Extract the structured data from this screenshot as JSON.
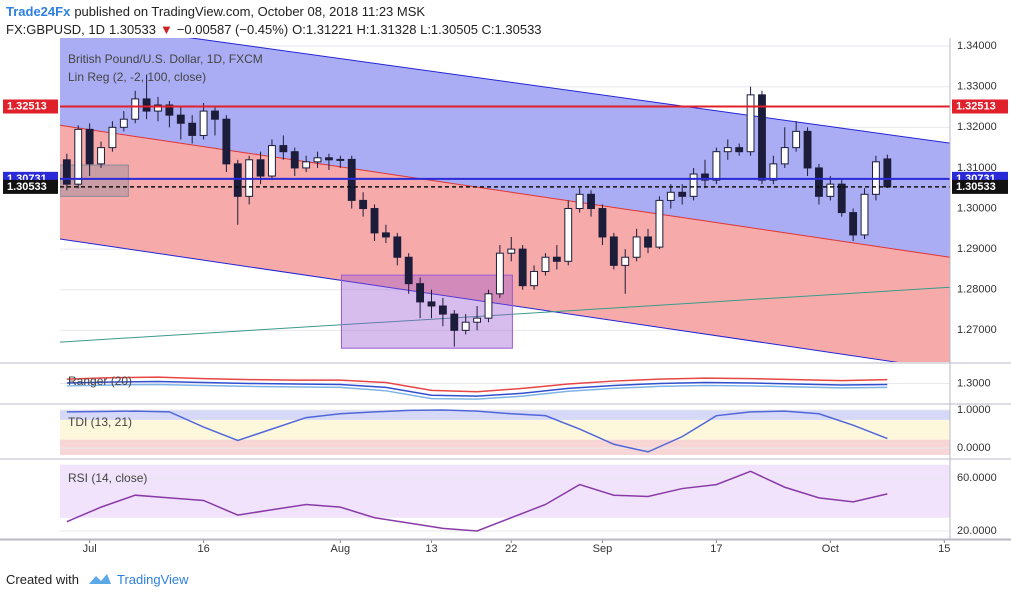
{
  "header": {
    "author": "Trade24Fx",
    "published": "published on TradingView.com, October 08, 2018 11:23 MSK",
    "symbol": "FX:GBPUSD, 1D",
    "last": "1.30533",
    "arrow": "▼",
    "change": "−0.00587 (−0.45%)",
    "ohlc": "O:1.31221 H:1.31328 L:1.30505 C:1.30533"
  },
  "footer": {
    "created": "Created with",
    "brand": "TradingView"
  },
  "chart_data": [
    {
      "type": "candlestick",
      "title": "British Pound/U.S. Dollar, 1D, FXCM",
      "subtitle": "Lin Reg (2, -2, 100, close)",
      "up_color": "#ffffff",
      "down_color": "#1c1d3a",
      "outline": "#1c1d3a",
      "xlim": [
        -0.6,
        77.5
      ],
      "xticks": [
        {
          "value": 2,
          "label": "Jul"
        },
        {
          "value": 12,
          "label": "16"
        },
        {
          "value": 24,
          "label": "Aug"
        },
        {
          "value": 32,
          "label": "13"
        },
        {
          "value": 39,
          "label": "22"
        },
        {
          "value": 47,
          "label": "Sep"
        },
        {
          "value": 57,
          "label": "17"
        },
        {
          "value": 67,
          "label": "Oct"
        },
        {
          "value": 77,
          "label": "15"
        }
      ],
      "ylim": [
        1.2622,
        1.342
      ],
      "yticks": [
        {
          "value": 1.27,
          "label": "1.27000"
        },
        {
          "value": 1.28,
          "label": "1.28000"
        },
        {
          "value": 1.29,
          "label": "1.29000"
        },
        {
          "value": 1.3,
          "label": "1.30000"
        },
        {
          "value": 1.31,
          "label": "1.31000"
        },
        {
          "value": 1.32,
          "label": "1.32000"
        },
        {
          "value": 1.33,
          "label": "1.33000"
        },
        {
          "value": 1.34,
          "label": "1.34000"
        }
      ],
      "grid": true,
      "candles": [
        [
          1.312,
          1.3135,
          1.3045,
          1.306
        ],
        [
          1.306,
          1.3205,
          1.305,
          1.3195
        ],
        [
          1.3195,
          1.321,
          1.308,
          1.311
        ],
        [
          1.311,
          1.3165,
          1.31,
          1.315
        ],
        [
          1.315,
          1.3215,
          1.314,
          1.32
        ],
        [
          1.32,
          1.324,
          1.319,
          1.322
        ],
        [
          1.322,
          1.329,
          1.321,
          1.327
        ],
        [
          1.327,
          1.333,
          1.322,
          1.324
        ],
        [
          1.324,
          1.3275,
          1.3215,
          1.3255
        ],
        [
          1.3255,
          1.3265,
          1.32,
          1.323
        ],
        [
          1.323,
          1.325,
          1.317,
          1.321
        ],
        [
          1.321,
          1.323,
          1.316,
          1.318
        ],
        [
          1.318,
          1.326,
          1.317,
          1.324
        ],
        [
          1.324,
          1.325,
          1.318,
          1.322
        ],
        [
          1.322,
          1.323,
          1.309,
          1.311
        ],
        [
          1.311,
          1.312,
          1.296,
          1.303
        ],
        [
          1.303,
          1.313,
          1.301,
          1.312
        ],
        [
          1.312,
          1.314,
          1.306,
          1.308
        ],
        [
          1.308,
          1.317,
          1.307,
          1.3155
        ],
        [
          1.3155,
          1.318,
          1.312,
          1.314
        ],
        [
          1.314,
          1.315,
          1.308,
          1.31
        ],
        [
          1.31,
          1.313,
          1.309,
          1.3115
        ],
        [
          1.3115,
          1.314,
          1.31,
          1.3125
        ],
        [
          1.3125,
          1.3135,
          1.3095,
          1.312
        ],
        [
          1.312,
          1.313,
          1.31,
          1.3121
        ],
        [
          1.3121,
          1.313,
          1.3,
          1.302
        ],
        [
          1.302,
          1.304,
          1.298,
          1.3
        ],
        [
          1.3,
          1.301,
          1.292,
          1.294
        ],
        [
          1.294,
          1.296,
          1.2915,
          1.293
        ],
        [
          1.293,
          1.294,
          1.286,
          1.288
        ],
        [
          1.288,
          1.289,
          1.279,
          1.2815
        ],
        [
          1.2815,
          1.283,
          1.273,
          1.277
        ],
        [
          1.277,
          1.28,
          1.273,
          1.276
        ],
        [
          1.276,
          1.278,
          1.271,
          1.274
        ],
        [
          1.274,
          1.275,
          1.266,
          1.27
        ],
        [
          1.27,
          1.274,
          1.269,
          1.272
        ],
        [
          1.272,
          1.276,
          1.27,
          1.273
        ],
        [
          1.273,
          1.28,
          1.272,
          1.279
        ],
        [
          1.279,
          1.291,
          1.278,
          1.289
        ],
        [
          1.289,
          1.293,
          1.287,
          1.29
        ],
        [
          1.29,
          1.291,
          1.28,
          1.281
        ],
        [
          1.281,
          1.286,
          1.28,
          1.2845
        ],
        [
          1.2845,
          1.289,
          1.2835,
          1.288
        ],
        [
          1.288,
          1.291,
          1.285,
          1.287
        ],
        [
          1.287,
          1.302,
          1.286,
          1.3
        ],
        [
          1.3,
          1.305,
          1.299,
          1.3035
        ],
        [
          1.3035,
          1.3045,
          1.298,
          1.3
        ],
        [
          1.3,
          1.301,
          1.291,
          1.293
        ],
        [
          1.293,
          1.294,
          1.285,
          1.286
        ],
        [
          1.286,
          1.29,
          1.279,
          1.288
        ],
        [
          1.288,
          1.295,
          1.287,
          1.293
        ],
        [
          1.293,
          1.295,
          1.289,
          1.2905
        ],
        [
          1.2905,
          1.303,
          1.29,
          1.302
        ],
        [
          1.302,
          1.306,
          1.3,
          1.304
        ],
        [
          1.304,
          1.306,
          1.301,
          1.303
        ],
        [
          1.303,
          1.31,
          1.302,
          1.3085
        ],
        [
          1.3085,
          1.312,
          1.305,
          1.307
        ],
        [
          1.307,
          1.315,
          1.306,
          1.314
        ],
        [
          1.314,
          1.317,
          1.312,
          1.315
        ],
        [
          1.315,
          1.316,
          1.313,
          1.314
        ],
        [
          1.314,
          1.33,
          1.313,
          1.328
        ],
        [
          1.328,
          1.329,
          1.306,
          1.307
        ],
        [
          1.307,
          1.313,
          1.306,
          1.311
        ],
        [
          1.311,
          1.32,
          1.31,
          1.315
        ],
        [
          1.315,
          1.3215,
          1.314,
          1.319
        ],
        [
          1.319,
          1.32,
          1.308,
          1.31
        ],
        [
          1.31,
          1.311,
          1.301,
          1.303
        ],
        [
          1.303,
          1.308,
          1.302,
          1.306
        ],
        [
          1.306,
          1.307,
          1.298,
          1.299
        ],
        [
          1.299,
          1.3,
          1.292,
          1.2935
        ],
        [
          1.2935,
          1.305,
          1.2925,
          1.3035
        ],
        [
          1.3035,
          1.313,
          1.302,
          1.3115
        ],
        [
          1.31221,
          1.31328,
          1.30505,
          1.30533
        ]
      ],
      "lin_reg": [
        {
          "color": "#2424d6",
          "x": [
            -0.6,
            77.5
          ],
          "values": [
            1.3465,
            1.3161
          ]
        },
        {
          "color": "#e03434",
          "x": [
            -0.6,
            77.5
          ],
          "values": [
            1.3205,
            1.288
          ]
        },
        {
          "color": "#2424d6",
          "x": [
            -0.6,
            77.5
          ],
          "values": [
            1.2925,
            1.2602
          ]
        }
      ],
      "upper_fill": "#aaadf4",
      "lower_fill": "#f6aaaa",
      "trend": {
        "color": "#3a9b8a",
        "x": [
          -0.6,
          77.5
        ],
        "values": [
          1.2671,
          1.2806
        ]
      },
      "boxes": [
        {
          "x": [
            -0.6,
            5.4
          ],
          "y": [
            1.303,
            1.3107
          ],
          "color": "#8a8a9a"
        },
        {
          "x": [
            24.1,
            39.1
          ],
          "y": [
            1.2656,
            1.2836
          ],
          "color": "#9a5ad2"
        }
      ],
      "levels": [
        {
          "value": 1.32513,
          "label": "1.32513",
          "color": "#e0202a",
          "dashed": false
        },
        {
          "value": 1.30731,
          "label": "1.30731",
          "color": "#2a2ad8",
          "dashed": false
        },
        {
          "value": 1.30533,
          "label": "1.30533",
          "color": "#111111",
          "dashed": true
        }
      ]
    },
    {
      "type": "line",
      "title": "Ranger (20)",
      "ylim": [
        1.28,
        1.32
      ],
      "yticks": [
        {
          "value": 1.3,
          "label": "1.3000"
        }
      ],
      "x": [
        0,
        4,
        8,
        12,
        16,
        20,
        24,
        28,
        32,
        36,
        40,
        44,
        48,
        52,
        56,
        60,
        64,
        68,
        72
      ],
      "series": [
        {
          "color": "#e84545",
          "values": [
            1.3045,
            1.306,
            1.3065,
            1.305,
            1.304,
            1.3035,
            1.3035,
            1.301,
            1.293,
            1.2915,
            1.295,
            1.2995,
            1.3025,
            1.3045,
            1.3055,
            1.305,
            1.304,
            1.303,
            1.304
          ]
        },
        {
          "color": "#3050d0",
          "values": [
            1.3005,
            1.3015,
            1.302,
            1.301,
            1.3,
            1.2995,
            1.299,
            1.296,
            1.288,
            1.287,
            1.29,
            1.295,
            1.298,
            1.3,
            1.301,
            1.3005,
            1.2995,
            1.2985,
            1.299
          ]
        },
        {
          "color": "#7fb3e6",
          "values": [
            1.2975,
            1.2985,
            1.299,
            1.298,
            1.297,
            1.2965,
            1.296,
            1.2925,
            1.2845,
            1.284,
            1.287,
            1.292,
            1.295,
            1.297,
            1.298,
            1.2975,
            1.2965,
            1.2955,
            1.296
          ]
        }
      ]
    },
    {
      "type": "line",
      "title": "TDI (13, 21)",
      "ylim": [
        -0.26,
        1.13
      ],
      "yticks": [
        {
          "value": 0,
          "label": "0.0000"
        },
        {
          "value": 1,
          "label": "1.0000"
        }
      ],
      "bands": [
        {
          "range": [
            0.22,
            0.74
          ],
          "color": "#fdf8dc"
        },
        {
          "range": [
            0.74,
            1.0
          ],
          "color": "#d6d8f7"
        },
        {
          "range": [
            -0.18,
            0.22
          ],
          "color": "#f8d6d6"
        }
      ],
      "x": [
        0,
        3,
        6,
        9,
        12,
        15,
        18,
        21,
        24,
        27,
        30,
        33,
        36,
        39,
        42,
        45,
        48,
        51,
        54,
        57,
        60,
        63,
        66,
        69,
        72
      ],
      "series": [
        {
          "color": "#5067d8",
          "values": [
            0.95,
            0.96,
            0.97,
            0.95,
            0.55,
            0.2,
            0.5,
            0.8,
            0.9,
            0.95,
            0.99,
            1.0,
            0.97,
            0.9,
            0.85,
            0.5,
            0.1,
            -0.1,
            0.3,
            0.85,
            0.95,
            0.97,
            0.9,
            0.6,
            0.25
          ]
        }
      ]
    },
    {
      "type": "line",
      "title": "RSI (14, close)",
      "ylim": [
        14.7,
        72.8
      ],
      "yticks": [
        {
          "value": 20,
          "label": "20.0000"
        },
        {
          "value": 60,
          "label": "60.0000"
        }
      ],
      "bands": [
        {
          "range": [
            30,
            70
          ],
          "color": "#f1e3fb"
        }
      ],
      "x": [
        0,
        3,
        6,
        9,
        12,
        15,
        18,
        21,
        24,
        27,
        30,
        33,
        36,
        39,
        42,
        45,
        48,
        51,
        54,
        57,
        60,
        63,
        66,
        69,
        72
      ],
      "series": [
        {
          "color": "#8a3aa8",
          "values": [
            27,
            38,
            47,
            45,
            43,
            32,
            36,
            40,
            38,
            30,
            26,
            22,
            20,
            30,
            40,
            55,
            47,
            46,
            52,
            55,
            65,
            53,
            45,
            42,
            48
          ]
        }
      ]
    }
  ]
}
